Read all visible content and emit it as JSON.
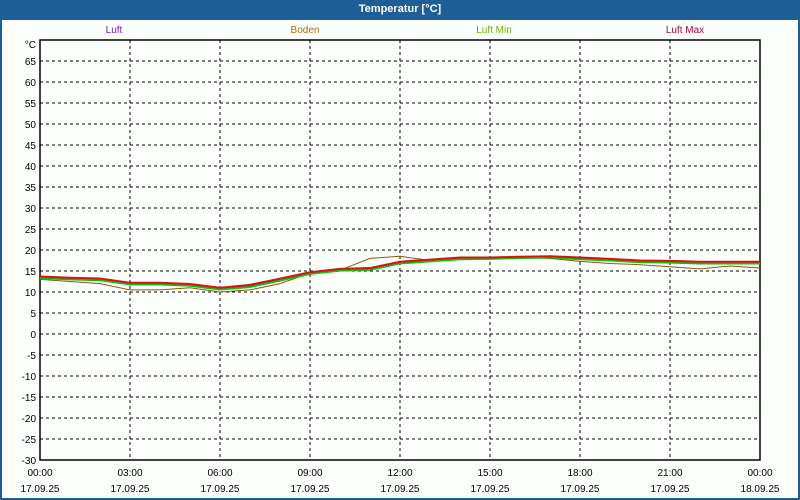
{
  "window": {
    "title": "Temperatur [°C]"
  },
  "chart_data": {
    "type": "line",
    "title": "Temperatur [°C]",
    "ylabel": "°C",
    "ylim": [
      -30,
      70
    ],
    "yticks": [
      65,
      60,
      55,
      50,
      45,
      40,
      35,
      30,
      25,
      20,
      15,
      10,
      5,
      0,
      -5,
      -10,
      -15,
      -20,
      -25,
      -30
    ],
    "xlim": [
      0,
      24
    ],
    "xticks": [
      {
        "h": 0,
        "time": "00:00",
        "date": "17.09.25"
      },
      {
        "h": 3,
        "time": "03:00",
        "date": "17.09.25"
      },
      {
        "h": 6,
        "time": "06:00",
        "date": "17.09.25"
      },
      {
        "h": 9,
        "time": "09:00",
        "date": "17.09.25"
      },
      {
        "h": 12,
        "time": "12:00",
        "date": "17.09.25"
      },
      {
        "h": 15,
        "time": "15:00",
        "date": "17.09.25"
      },
      {
        "h": 18,
        "time": "18:00",
        "date": "17.09.25"
      },
      {
        "h": 21,
        "time": "21:00",
        "date": "17.09.25"
      },
      {
        "h": 24,
        "time": "00:00",
        "date": "18.09.25"
      }
    ],
    "grid": true,
    "legend_placement": "top",
    "x": [
      0,
      1,
      2,
      3,
      4,
      5,
      6,
      7,
      8,
      9,
      10,
      11,
      12,
      13,
      14,
      15,
      16,
      17,
      18,
      19,
      20,
      21,
      22,
      23,
      24
    ],
    "series": [
      {
        "name": "Luft",
        "label_color": "#7a1fb0",
        "color": "#1010d0",
        "values": [
          13.5,
          13.2,
          13,
          12,
          12,
          11.7,
          10.8,
          11.5,
          13,
          14.5,
          15.3,
          15.5,
          17,
          17.5,
          18,
          18,
          18.2,
          18.3,
          18,
          17.7,
          17.3,
          17.2,
          17,
          17,
          17
        ]
      },
      {
        "name": "Boden",
        "label_color": "#b06a10",
        "color": "#8a5a10",
        "values": [
          13,
          12.5,
          12,
          10.5,
          10.5,
          11,
          10,
          10.5,
          12,
          14.5,
          15.2,
          18,
          18.5,
          17.5,
          18,
          18,
          18.2,
          18,
          17.3,
          16.8,
          16.5,
          16,
          15.5,
          16.2,
          15.7
        ]
      },
      {
        "name": "Luft Min",
        "label_color": "#70b000",
        "color": "#10c010",
        "values": [
          13.3,
          13,
          12.8,
          11.8,
          11.8,
          11.5,
          10.6,
          11.2,
          12.7,
          14.3,
          15.1,
          15.3,
          16.8,
          17.3,
          17.8,
          17.9,
          18.1,
          18.2,
          17.8,
          17.5,
          17.1,
          17,
          16.8,
          16.8,
          16.8
        ]
      },
      {
        "name": "Luft Max",
        "label_color": "#a01040",
        "color": "#e01010",
        "values": [
          13.7,
          13.4,
          13.2,
          12.2,
          12.2,
          11.9,
          11,
          11.7,
          13.2,
          14.7,
          15.5,
          15.7,
          17.2,
          17.7,
          18.2,
          18.2,
          18.4,
          18.5,
          18.2,
          17.9,
          17.5,
          17.4,
          17.2,
          17.2,
          17.2
        ]
      }
    ]
  }
}
